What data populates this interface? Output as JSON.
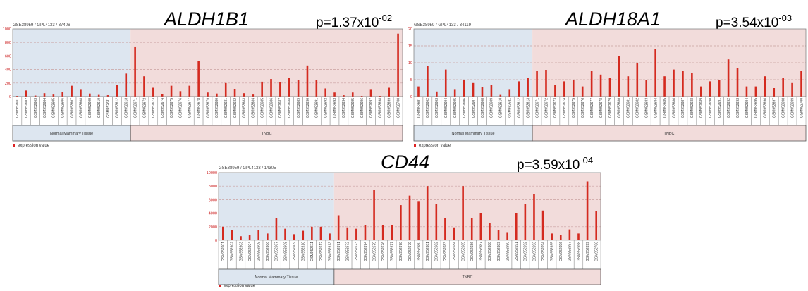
{
  "colors": {
    "bar": "#d42a1f",
    "normal_bg": "#dde6f0",
    "tnbc_bg": "#f2dcdb",
    "axis_text": "#cc2222",
    "grid": "#c9a0a0"
  },
  "chart_data": [
    {
      "type": "bar",
      "gene": "ALDH1B1",
      "pvalue": {
        "base": "p=1.37x10",
        "exp": "-02"
      },
      "accession": "GSE38959 / GPL4133 / 37406",
      "legend": "expression value",
      "ylim": [
        0,
        1000
      ],
      "yticks": [
        "0",
        "200",
        "400",
        "600",
        "800",
        "1000"
      ],
      "grid": true,
      "groups": [
        {
          "label": "Normal Mammary Tissue",
          "count": 13
        },
        {
          "label": "TNBC",
          "count": 30
        }
      ],
      "categories": [
        "GSM952601",
        "GSM952602",
        "GSM952603",
        "GSM952604",
        "GSM952605",
        "GSM952606",
        "GSM952607",
        "GSM952608",
        "GSM952609",
        "GSM952610",
        "GSM952611",
        "GSM952612",
        "GSM952613",
        "GSM952671",
        "GSM952672",
        "GSM952673",
        "GSM952674",
        "GSM952675",
        "GSM952676",
        "GSM952677",
        "GSM952678",
        "GSM952679",
        "GSM952680",
        "GSM952681",
        "GSM952682",
        "GSM952683",
        "GSM952684",
        "GSM952685",
        "GSM952686",
        "GSM952687",
        "GSM952688",
        "GSM952689",
        "GSM952690",
        "GSM952691",
        "GSM952692",
        "GSM952693",
        "GSM952694",
        "GSM952695",
        "GSM952696",
        "GSM952697",
        "GSM952698",
        "GSM952699",
        "GSM952700"
      ],
      "values": [
        10,
        90,
        15,
        50,
        30,
        65,
        160,
        100,
        45,
        25,
        20,
        170,
        340,
        740,
        300,
        130,
        40,
        160,
        80,
        160,
        530,
        60,
        45,
        200,
        110,
        50,
        30,
        220,
        260,
        210,
        280,
        250,
        460,
        250,
        120,
        60,
        20,
        60,
        10,
        100,
        10,
        130,
        930
      ]
    },
    {
      "type": "bar",
      "gene": "ALDH18A1",
      "pvalue": {
        "base": "p=3.54x10",
        "exp": "-03"
      },
      "accession": "GSE38959 / GPL4133 / 34119",
      "legend": "expression value",
      "ylim": [
        0,
        20
      ],
      "yticks": [
        "0",
        "5",
        "10",
        "15",
        "20"
      ],
      "grid": true,
      "groups": [
        {
          "label": "Normal Mammary Tissue",
          "count": 13
        },
        {
          "label": "TNBC",
          "count": 30
        }
      ],
      "categories": [
        "GSM952601",
        "GSM952602",
        "GSM952603",
        "GSM952604",
        "GSM952605",
        "GSM952606",
        "GSM952607",
        "GSM952608",
        "GSM952609",
        "GSM952610",
        "GSM952611",
        "GSM952612",
        "GSM952613",
        "GSM952671",
        "GSM952672",
        "GSM952673",
        "GSM952674",
        "GSM952675",
        "GSM952676",
        "GSM952677",
        "GSM952678",
        "GSM952679",
        "GSM952680",
        "GSM952681",
        "GSM952682",
        "GSM952683",
        "GSM952684",
        "GSM952685",
        "GSM952686",
        "GSM952687",
        "GSM952688",
        "GSM952689",
        "GSM952690",
        "GSM952691",
        "GSM952692",
        "GSM952693",
        "GSM952694",
        "GSM952695",
        "GSM952696",
        "GSM952697",
        "GSM952698",
        "GSM952699",
        "GSM952700"
      ],
      "values": [
        3,
        9,
        1.5,
        8,
        2,
        5,
        4,
        2.8,
        3.5,
        0.5,
        2,
        4.5,
        5.5,
        7.5,
        7.8,
        3.5,
        4.5,
        5,
        3,
        7.5,
        6.5,
        5.5,
        12,
        6,
        10,
        5,
        14,
        6,
        8,
        7.5,
        7,
        3,
        4.5,
        5,
        11,
        8.5,
        3,
        3,
        6,
        2.5,
        5.5,
        4,
        7.5
      ]
    },
    {
      "type": "bar",
      "gene": "CD44",
      "pvalue": {
        "base": "p=3.59x10",
        "exp": "-04"
      },
      "accession": "GSE38959 / GPL4133 / 14305",
      "legend": "expression value",
      "ylim": [
        0,
        10000
      ],
      "yticks": [
        "0",
        "2000",
        "4000",
        "6000",
        "8000",
        "10000"
      ],
      "grid": true,
      "groups": [
        {
          "label": "Normal Mammary Tissue",
          "count": 13
        },
        {
          "label": "TNBC",
          "count": 30
        }
      ],
      "categories": [
        "GSM952601",
        "GSM952602",
        "GSM952603",
        "GSM952604",
        "GSM952605",
        "GSM952606",
        "GSM952607",
        "GSM952608",
        "GSM952609",
        "GSM952610",
        "GSM952611",
        "GSM952612",
        "GSM952613",
        "GSM952671",
        "GSM952672",
        "GSM952673",
        "GSM952674",
        "GSM952675",
        "GSM952676",
        "GSM952677",
        "GSM952678",
        "GSM952679",
        "GSM952680",
        "GSM952681",
        "GSM952682",
        "GSM952683",
        "GSM952684",
        "GSM952685",
        "GSM952686",
        "GSM952687",
        "GSM952688",
        "GSM952689",
        "GSM952690",
        "GSM952691",
        "GSM952692",
        "GSM952693",
        "GSM952694",
        "GSM952695",
        "GSM952696",
        "GSM952697",
        "GSM952698",
        "GSM952699",
        "GSM952700"
      ],
      "values": [
        2000,
        1500,
        600,
        800,
        1500,
        1000,
        3300,
        1700,
        900,
        1400,
        2000,
        2000,
        1000,
        3700,
        1900,
        1700,
        2200,
        7500,
        2200,
        2200,
        5200,
        6600,
        5800,
        8000,
        5400,
        3300,
        1900,
        8000,
        3300,
        4000,
        2600,
        1500,
        1200,
        4000,
        5400,
        6800,
        4400,
        1000,
        800,
        1600,
        1000,
        8700,
        4300
      ]
    }
  ]
}
